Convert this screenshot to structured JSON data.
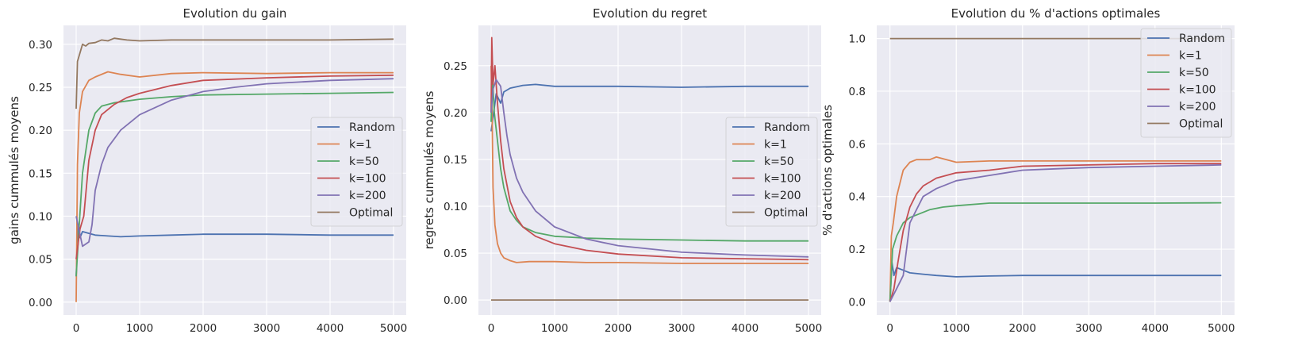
{
  "chart_data": [
    {
      "type": "line",
      "title": "Evolution du gain",
      "xlabel": "",
      "ylabel": "gains cummulés moyens",
      "xlim": [
        -200,
        5200
      ],
      "ylim": [
        -0.015,
        0.322
      ],
      "xticks": [
        0,
        1000,
        2000,
        3000,
        4000,
        5000
      ],
      "yticks": [
        0.0,
        0.05,
        0.1,
        0.15,
        0.2,
        0.25,
        0.3
      ],
      "ytick_labels": [
        "0.00",
        "0.05",
        "0.10",
        "0.15",
        "0.20",
        "0.25",
        "0.30"
      ],
      "grid": true,
      "legend": "center-right",
      "series": [
        {
          "name": "Random",
          "color": "#4c72b0",
          "x": [
            0,
            30,
            60,
            100,
            200,
            300,
            500,
            700,
            1000,
            1500,
            2000,
            3000,
            4000,
            5000
          ],
          "y": [
            0.03,
            0.09,
            0.075,
            0.082,
            0.08,
            0.078,
            0.077,
            0.076,
            0.077,
            0.078,
            0.079,
            0.079,
            0.078,
            0.078
          ]
        },
        {
          "name": "k=1",
          "color": "#dd8452",
          "x": [
            0,
            20,
            50,
            100,
            200,
            300,
            500,
            700,
            1000,
            1500,
            2000,
            3000,
            4000,
            5000
          ],
          "y": [
            0.0,
            0.16,
            0.22,
            0.245,
            0.258,
            0.262,
            0.268,
            0.265,
            0.262,
            0.266,
            0.267,
            0.266,
            0.267,
            0.267
          ]
        },
        {
          "name": "k=50",
          "color": "#55a868",
          "x": [
            0,
            40,
            100,
            200,
            300,
            400,
            600,
            800,
            1000,
            1500,
            2000,
            3000,
            4000,
            5000
          ],
          "y": [
            0.03,
            0.08,
            0.15,
            0.2,
            0.22,
            0.228,
            0.232,
            0.234,
            0.236,
            0.239,
            0.241,
            0.242,
            0.243,
            0.244
          ]
        },
        {
          "name": "k=100",
          "color": "#c44e52",
          "x": [
            0,
            60,
            120,
            200,
            300,
            400,
            600,
            800,
            1000,
            1500,
            2000,
            3000,
            4000,
            5000
          ],
          "y": [
            0.05,
            0.085,
            0.1,
            0.165,
            0.2,
            0.218,
            0.23,
            0.238,
            0.243,
            0.252,
            0.258,
            0.261,
            0.263,
            0.264
          ]
        },
        {
          "name": "k=200",
          "color": "#8172b3",
          "x": [
            0,
            100,
            200,
            250,
            300,
            400,
            500,
            700,
            1000,
            1500,
            2000,
            2500,
            3000,
            4000,
            5000
          ],
          "y": [
            0.1,
            0.065,
            0.07,
            0.09,
            0.13,
            0.16,
            0.18,
            0.2,
            0.218,
            0.235,
            0.245,
            0.25,
            0.254,
            0.258,
            0.26
          ]
        },
        {
          "name": "Optimal",
          "color": "#937860",
          "x": [
            0,
            20,
            60,
            100,
            150,
            200,
            300,
            400,
            500,
            600,
            700,
            800,
            1000,
            1500,
            2000,
            3000,
            4000,
            5000
          ],
          "y": [
            0.225,
            0.28,
            0.29,
            0.3,
            0.298,
            0.301,
            0.302,
            0.305,
            0.304,
            0.307,
            0.306,
            0.305,
            0.304,
            0.305,
            0.305,
            0.305,
            0.305,
            0.306
          ]
        }
      ]
    },
    {
      "type": "line",
      "title": "Evolution du regret",
      "xlabel": "",
      "ylabel": "regrets cummulés moyens",
      "xlim": [
        -200,
        5200
      ],
      "ylim": [
        -0.016,
        0.293
      ],
      "xticks": [
        0,
        1000,
        2000,
        3000,
        4000,
        5000
      ],
      "yticks": [
        0.0,
        0.05,
        0.1,
        0.15,
        0.2,
        0.25
      ],
      "ytick_labels": [
        "0.00",
        "0.05",
        "0.10",
        "0.15",
        "0.20",
        "0.25"
      ],
      "grid": true,
      "legend": "center-right",
      "series": [
        {
          "name": "Random",
          "color": "#4c72b0",
          "x": [
            0,
            40,
            80,
            150,
            200,
            300,
            500,
            700,
            1000,
            1500,
            2000,
            3000,
            4000,
            5000
          ],
          "y": [
            0.18,
            0.2,
            0.22,
            0.21,
            0.222,
            0.226,
            0.229,
            0.23,
            0.228,
            0.228,
            0.228,
            0.227,
            0.228,
            0.228
          ]
        },
        {
          "name": "k=1",
          "color": "#dd8452",
          "x": [
            0,
            15,
            30,
            60,
            100,
            150,
            200,
            300,
            400,
            600,
            1000,
            1500,
            2000,
            3000,
            4000,
            5000
          ],
          "y": [
            0.25,
            0.2,
            0.12,
            0.08,
            0.06,
            0.05,
            0.045,
            0.042,
            0.04,
            0.041,
            0.041,
            0.04,
            0.04,
            0.039,
            0.039,
            0.039
          ]
        },
        {
          "name": "k=50",
          "color": "#55a868",
          "x": [
            0,
            20,
            50,
            100,
            150,
            200,
            300,
            400,
            500,
            700,
            1000,
            1500,
            2000,
            3000,
            4000,
            5000
          ],
          "y": [
            0.19,
            0.24,
            0.2,
            0.17,
            0.14,
            0.12,
            0.095,
            0.085,
            0.078,
            0.072,
            0.068,
            0.066,
            0.065,
            0.064,
            0.063,
            0.063
          ]
        },
        {
          "name": "k=100",
          "color": "#c44e52",
          "x": [
            0,
            10,
            30,
            60,
            100,
            150,
            200,
            300,
            400,
            500,
            700,
            1000,
            1500,
            2000,
            3000,
            4000,
            5000
          ],
          "y": [
            0.2,
            0.28,
            0.23,
            0.25,
            0.21,
            0.17,
            0.14,
            0.105,
            0.088,
            0.078,
            0.068,
            0.06,
            0.053,
            0.049,
            0.045,
            0.044,
            0.043
          ]
        },
        {
          "name": "k=200",
          "color": "#8172b3",
          "x": [
            0,
            30,
            80,
            150,
            200,
            250,
            300,
            400,
            500,
            700,
            1000,
            1500,
            2000,
            3000,
            4000,
            5000
          ],
          "y": [
            0.2,
            0.225,
            0.235,
            0.228,
            0.2,
            0.175,
            0.155,
            0.13,
            0.115,
            0.095,
            0.078,
            0.065,
            0.058,
            0.051,
            0.048,
            0.046
          ]
        },
        {
          "name": "Optimal",
          "color": "#937860",
          "x": [
            0,
            5000
          ],
          "y": [
            0.0,
            0.0
          ]
        }
      ]
    },
    {
      "type": "line",
      "title": "Evolution du % d'actions optimales",
      "xlabel": "",
      "ylabel": "% d'actions optimales",
      "xlim": [
        -200,
        5200
      ],
      "ylim": [
        -0.05,
        1.05
      ],
      "xticks": [
        0,
        1000,
        2000,
        3000,
        4000,
        5000
      ],
      "yticks": [
        0.0,
        0.2,
        0.4,
        0.6,
        0.8,
        1.0
      ],
      "ytick_labels": [
        "0.0",
        "0.2",
        "0.4",
        "0.6",
        "0.8",
        "1.0"
      ],
      "grid": true,
      "legend": "top-right",
      "series": [
        {
          "name": "Random",
          "color": "#4c72b0",
          "x": [
            0,
            30,
            60,
            100,
            200,
            300,
            500,
            700,
            1000,
            1500,
            2000,
            3000,
            4000,
            5000
          ],
          "y": [
            0.0,
            0.15,
            0.1,
            0.13,
            0.12,
            0.11,
            0.105,
            0.1,
            0.095,
            0.098,
            0.1,
            0.1,
            0.1,
            0.1
          ]
        },
        {
          "name": "k=1",
          "color": "#dd8452",
          "x": [
            0,
            20,
            50,
            100,
            150,
            200,
            300,
            400,
            600,
            700,
            1000,
            1500,
            2000,
            3000,
            4000,
            5000
          ],
          "y": [
            0.0,
            0.25,
            0.3,
            0.4,
            0.45,
            0.5,
            0.53,
            0.54,
            0.54,
            0.55,
            0.53,
            0.535,
            0.535,
            0.535,
            0.535,
            0.535
          ]
        },
        {
          "name": "k=50",
          "color": "#55a868",
          "x": [
            0,
            40,
            100,
            200,
            300,
            400,
            600,
            800,
            1000,
            1500,
            2000,
            3000,
            4000,
            5000
          ],
          "y": [
            0.0,
            0.2,
            0.25,
            0.3,
            0.32,
            0.33,
            0.35,
            0.36,
            0.365,
            0.375,
            0.375,
            0.375,
            0.375,
            0.376
          ]
        },
        {
          "name": "k=100",
          "color": "#c44e52",
          "x": [
            0,
            60,
            120,
            200,
            300,
            400,
            500,
            700,
            1000,
            1500,
            2000,
            3000,
            4000,
            5000
          ],
          "y": [
            0.0,
            0.05,
            0.15,
            0.27,
            0.36,
            0.41,
            0.44,
            0.47,
            0.49,
            0.5,
            0.515,
            0.52,
            0.525,
            0.525
          ]
        },
        {
          "name": "k=200",
          "color": "#8172b3",
          "x": [
            0,
            100,
            200,
            250,
            300,
            400,
            500,
            700,
            1000,
            1500,
            2000,
            2500,
            3000,
            4000,
            5000
          ],
          "y": [
            0.0,
            0.05,
            0.1,
            0.2,
            0.3,
            0.35,
            0.4,
            0.43,
            0.46,
            0.48,
            0.5,
            0.505,
            0.51,
            0.515,
            0.52
          ]
        },
        {
          "name": "Optimal",
          "color": "#937860",
          "x": [
            0,
            5000
          ],
          "y": [
            1.0,
            1.0
          ]
        }
      ]
    }
  ]
}
